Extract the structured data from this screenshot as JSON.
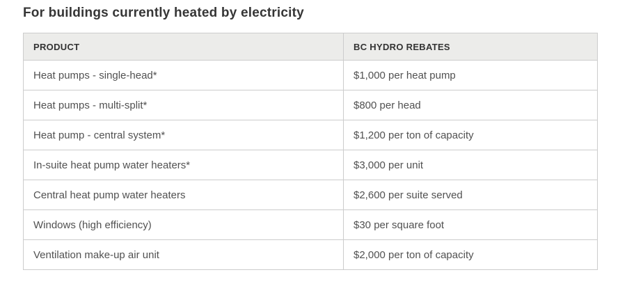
{
  "page_title": "For buildings currently heated by electricity",
  "colors": {
    "title_text": "#363636",
    "header_background": "#ececea",
    "table_border": "#cccccc",
    "cell_text": "#515151"
  },
  "table": {
    "headers": [
      "PRODUCT",
      "BC HYDRO REBATES"
    ],
    "rows": [
      {
        "product": "Heat pumps - single-head*",
        "rebate": "$1,000 per heat pump"
      },
      {
        "product": "Heat pumps - multi-split*",
        "rebate": "$800 per head"
      },
      {
        "product": "Heat pump - central system*",
        "rebate": "$1,200 per ton of capacity"
      },
      {
        "product": "In-suite heat pump water heaters*",
        "rebate": "$3,000 per unit"
      },
      {
        "product": "Central heat pump water heaters",
        "rebate": "$2,600 per suite served"
      },
      {
        "product": "Windows (high efficiency)",
        "rebate": "$30 per square foot"
      },
      {
        "product": "Ventilation make-up air unit",
        "rebate": "$2,000 per ton of capacity"
      }
    ]
  }
}
